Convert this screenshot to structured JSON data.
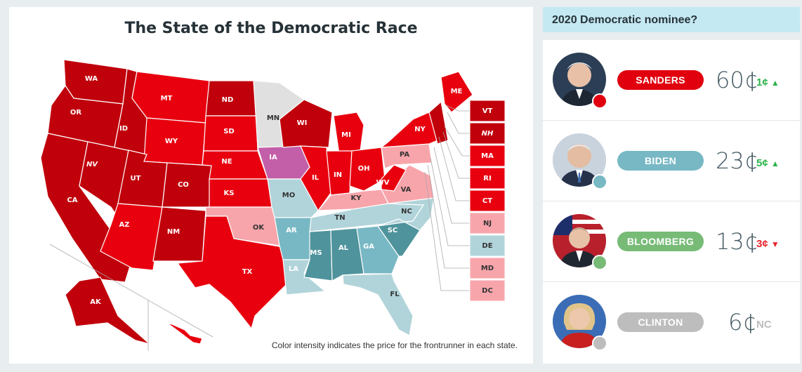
{
  "map": {
    "title": "The State of the Democratic Race",
    "caption": "Color intensity indicates the price for the frontrunner in each state.",
    "colors": {
      "sanders_dark": "#c0000b",
      "sanders_mid": "#e8000f",
      "sanders_light": "#f7a5ab",
      "biden_dark": "#4f939c",
      "biden_mid": "#78b8c4",
      "biden_light": "#b1d4da",
      "bloomberg": "#c35fa8",
      "none": "#e0e0e0"
    },
    "states": [
      "WA",
      "OR",
      "CA",
      "NV",
      "ID",
      "MT",
      "WY",
      "UT",
      "AZ",
      "CO",
      "NM",
      "ND",
      "SD",
      "NE",
      "KS",
      "OK",
      "TX",
      "MN",
      "IA",
      "MO",
      "AR",
      "LA",
      "WI",
      "IL",
      "MI",
      "IN",
      "OH",
      "KY",
      "TN",
      "MS",
      "AL",
      "GA",
      "FL",
      "SC",
      "NC",
      "VA",
      "WV",
      "PA",
      "NY",
      "ME",
      "AK",
      "HI"
    ],
    "small_states": [
      "VT",
      "NH",
      "MA",
      "RI",
      "CT",
      "NJ",
      "DE",
      "MD",
      "DC"
    ]
  },
  "sidebar": {
    "title": "2020 Democratic nominee?",
    "candidates": [
      {
        "name": "SANDERS",
        "price": "60¢",
        "change": "1¢",
        "direction": "up",
        "color": "#e0000e",
        "change_color": "#2db34a",
        "arrow_icon": "arrow-up-icon"
      },
      {
        "name": "BIDEN",
        "price": "23¢",
        "change": "5¢",
        "direction": "up",
        "color": "#78b8c4",
        "change_color": "#2db34a",
        "arrow_icon": "arrow-up-icon"
      },
      {
        "name": "BLOOMBERG",
        "price": "13¢",
        "change": "3¢",
        "direction": "down",
        "color": "#77bb77",
        "change_color": "#e8262d",
        "arrow_icon": "arrow-down-icon"
      },
      {
        "name": "CLINTON",
        "price": "6¢",
        "change": "NC",
        "direction": "none",
        "color": "#bdbdbd",
        "change_color": "#bdbdbd",
        "arrow_icon": ""
      }
    ]
  }
}
